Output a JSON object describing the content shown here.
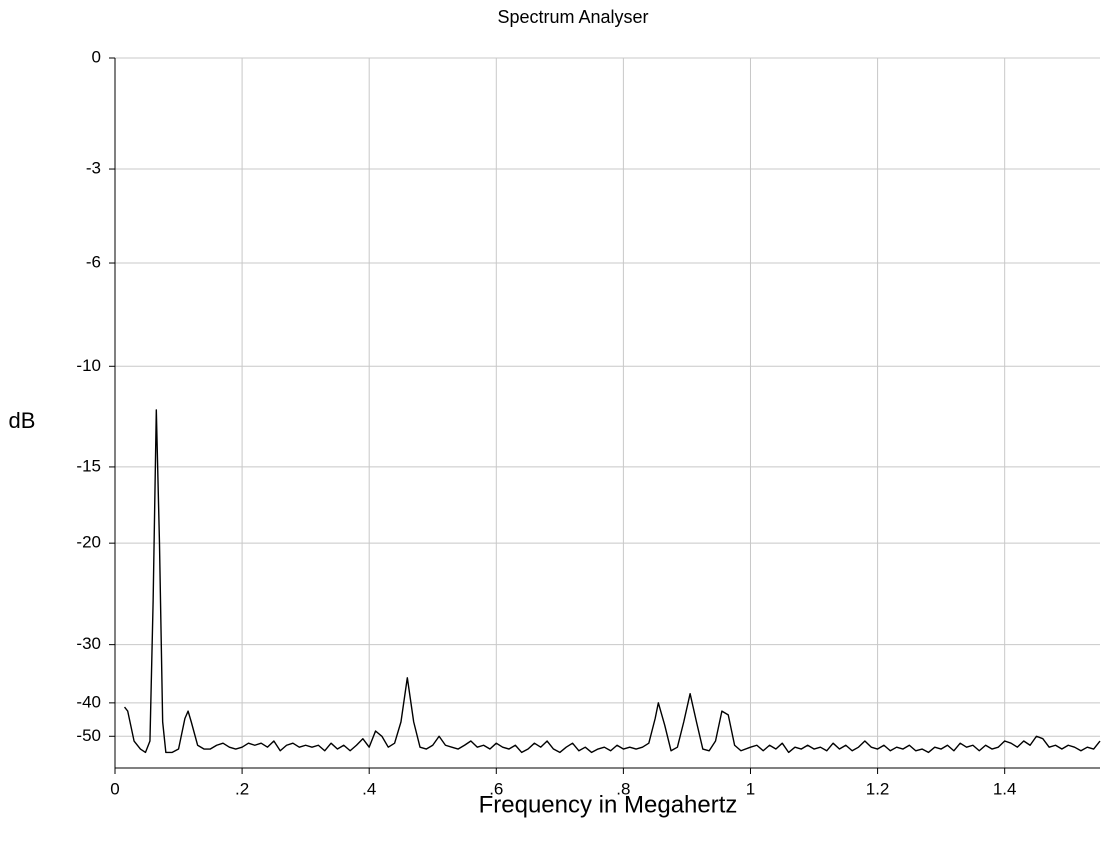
{
  "chart_data": {
    "type": "line",
    "title": "Spectrum Analyser",
    "x_label": "Frequency in Megahertz",
    "y_label": "dB",
    "xlim": [
      0,
      1.55
    ],
    "xticks": [
      0,
      {
        "value": 0.2,
        "label": ".2"
      },
      {
        "value": 0.4,
        "label": ".4"
      },
      {
        "value": 0.6,
        "label": ".6"
      },
      {
        "value": 0.8,
        "label": ".8"
      },
      1,
      1.2,
      1.4
    ],
    "ylim": [
      0,
      -72
    ],
    "yscale": "exponential",
    "yticks": [
      0,
      -3,
      -6,
      -10,
      -15,
      -20,
      -30,
      -40,
      -50
    ],
    "grid": true,
    "series": [
      {
        "color": "#000000",
        "x": [
          0.015,
          0.02,
          0.03,
          0.04,
          0.048,
          0.055,
          0.06,
          0.065,
          0.07,
          0.075,
          0.08,
          0.09,
          0.1,
          0.11,
          0.115,
          0.12,
          0.13,
          0.14,
          0.15,
          0.16,
          0.17,
          0.18,
          0.19,
          0.2,
          0.21,
          0.22,
          0.23,
          0.24,
          0.25,
          0.26,
          0.27,
          0.28,
          0.29,
          0.3,
          0.31,
          0.32,
          0.33,
          0.34,
          0.35,
          0.36,
          0.37,
          0.38,
          0.39,
          0.4,
          0.41,
          0.42,
          0.43,
          0.44,
          0.45,
          0.46,
          0.47,
          0.48,
          0.49,
          0.5,
          0.51,
          0.52,
          0.53,
          0.54,
          0.55,
          0.56,
          0.57,
          0.58,
          0.59,
          0.6,
          0.61,
          0.62,
          0.63,
          0.64,
          0.65,
          0.66,
          0.67,
          0.68,
          0.69,
          0.7,
          0.71,
          0.72,
          0.73,
          0.74,
          0.75,
          0.76,
          0.77,
          0.78,
          0.79,
          0.8,
          0.81,
          0.82,
          0.83,
          0.84,
          0.85,
          0.855,
          0.865,
          0.875,
          0.885,
          0.895,
          0.905,
          0.915,
          0.925,
          0.935,
          0.945,
          0.955,
          0.965,
          0.975,
          0.985,
          1.0,
          1.01,
          1.02,
          1.03,
          1.04,
          1.05,
          1.06,
          1.07,
          1.08,
          1.09,
          1.1,
          1.11,
          1.12,
          1.13,
          1.14,
          1.15,
          1.16,
          1.17,
          1.18,
          1.19,
          1.2,
          1.21,
          1.22,
          1.23,
          1.24,
          1.25,
          1.26,
          1.27,
          1.28,
          1.29,
          1.3,
          1.31,
          1.32,
          1.33,
          1.34,
          1.35,
          1.36,
          1.37,
          1.38,
          1.39,
          1.4,
          1.41,
          1.42,
          1.43,
          1.44,
          1.45,
          1.46,
          1.47,
          1.48,
          1.49,
          1.5,
          1.51,
          1.52,
          1.53,
          1.54,
          1.55
        ],
        "values": [
          -41,
          -42,
          -52,
          -56,
          -58,
          -52,
          -25,
          -12,
          -20,
          -45,
          -58,
          -58,
          -56,
          -44,
          -42,
          -45,
          -54,
          -56,
          -56,
          -54,
          -53,
          -55,
          -56,
          -55,
          -53,
          -54,
          -53,
          -55,
          -52,
          -57,
          -54,
          -53,
          -55,
          -54,
          -55,
          -54,
          -57,
          -53,
          -56,
          -54,
          -57,
          -54,
          -51,
          -55,
          -48,
          -50,
          -55,
          -53,
          -45,
          -35,
          -45,
          -55,
          -56,
          -54,
          -50,
          -54,
          -55,
          -56,
          -54,
          -52,
          -55,
          -54,
          -56,
          -53,
          -55,
          -56,
          -54,
          -58,
          -56,
          -53,
          -55,
          -52,
          -56,
          -58,
          -55,
          -53,
          -57,
          -55,
          -58,
          -56,
          -55,
          -57,
          -54,
          -56,
          -55,
          -56,
          -55,
          -53,
          -44,
          -40,
          -46,
          -57,
          -55,
          -45,
          -38,
          -45,
          -56,
          -57,
          -52,
          -42,
          -43,
          -54,
          -57,
          -55,
          -54,
          -57,
          -54,
          -56,
          -53,
          -58,
          -55,
          -56,
          -54,
          -56,
          -55,
          -57,
          -53,
          -56,
          -54,
          -57,
          -55,
          -52,
          -55,
          -56,
          -54,
          -57,
          -55,
          -56,
          -54,
          -57,
          -56,
          -58,
          -55,
          -56,
          -54,
          -57,
          -53,
          -55,
          -54,
          -57,
          -54,
          -56,
          -55,
          -52,
          -53,
          -55,
          -52,
          -54,
          -50,
          -51,
          -55,
          -54,
          -56,
          -54,
          -55,
          -57,
          -55,
          -56,
          -52
        ]
      }
    ]
  }
}
